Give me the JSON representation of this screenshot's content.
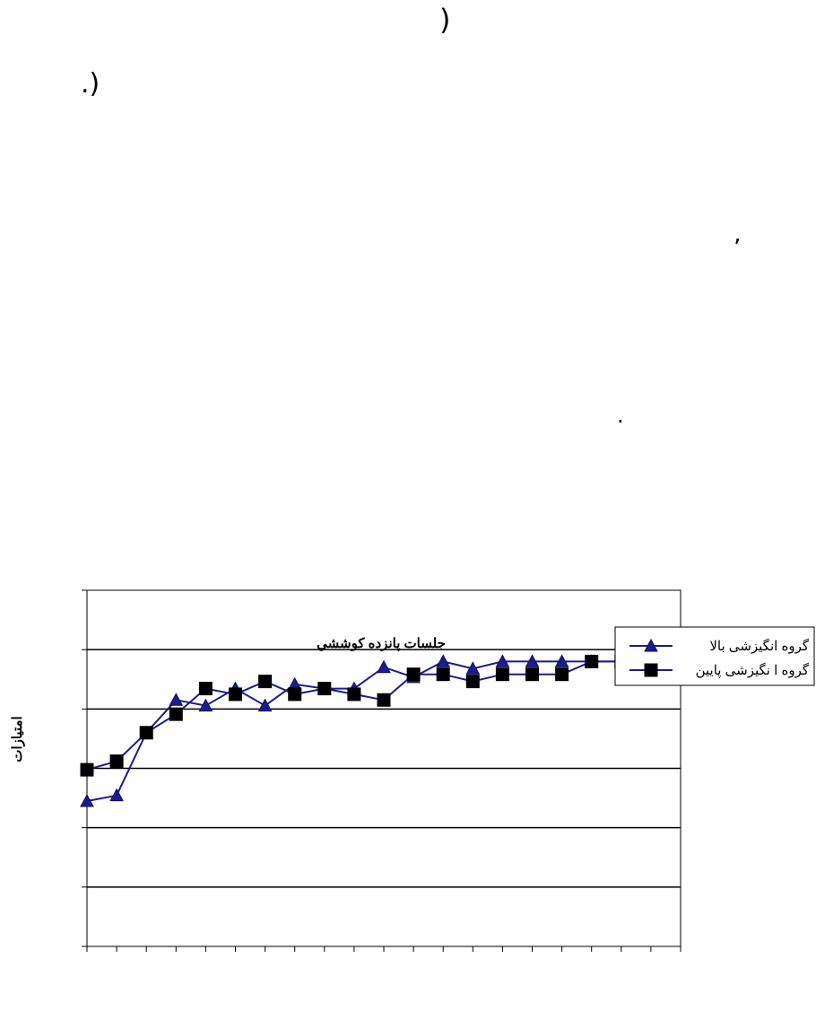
{
  "page": {
    "paren_top": ")",
    "paren_mid": ".)",
    "tick_mark": "’",
    "dot_mark": "."
  },
  "chart_data": {
    "type": "line",
    "xlabel": "جلسات پانزده کوششي",
    "ylabel": "امتيازات",
    "x_tick_labels": [
      "",
      "",
      "",
      "",
      "",
      "",
      "",
      "",
      "",
      "",
      ""
    ],
    "y_tick_labels": [
      "",
      "",
      "",
      "",
      "",
      "",
      ""
    ],
    "ylim": [
      0,
      25
    ],
    "grid": true,
    "legend_position": "bottom-right",
    "x": [
      1,
      2,
      3,
      4,
      5,
      6,
      7,
      8,
      9,
      10,
      11,
      12,
      13,
      14,
      15,
      16,
      17,
      18,
      19,
      20,
      21
    ],
    "series": [
      {
        "name": "گروه انگيزشی بالا",
        "marker": "triangle",
        "color": "#1c1c8c",
        "values": [
          10.2,
          10.6,
          15.0,
          17.3,
          16.9,
          18.1,
          16.9,
          18.4,
          18.1,
          18.1,
          19.6,
          18.9,
          20.0,
          19.5,
          20.0,
          20.0,
          20.0,
          20.0,
          20.0,
          20.5,
          19.7
        ]
      },
      {
        "name": "گروه ا نگيزشی پايين",
        "marker": "square",
        "color": "#1c1c8c",
        "values": [
          12.4,
          13.0,
          15.0,
          16.3,
          18.1,
          17.7,
          18.6,
          17.7,
          18.1,
          17.7,
          17.3,
          19.1,
          19.1,
          18.6,
          19.1,
          19.1,
          19.1,
          20.0,
          20.0,
          20.5,
          19.7
        ]
      }
    ]
  }
}
